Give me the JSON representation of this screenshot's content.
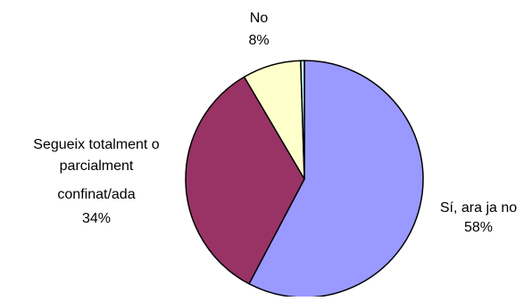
{
  "chart_data": {
    "type": "pie",
    "title": "",
    "categories": [
      "Sí, ara ja no",
      "Segueix totalment o parcialment confinat/ada",
      "No",
      ""
    ],
    "values": [
      58,
      34,
      8,
      0.5
    ],
    "colors": [
      "#9999ff",
      "#993366",
      "#ffffcc",
      "#ccffff"
    ],
    "start_angle_deg": 0,
    "direction": "clockwise",
    "labels": [
      {
        "lines": [
          "Sí, ara ja no",
          "58%"
        ]
      },
      {
        "lines": [
          "Segueix totalment o",
          "parcialment",
          "confinat/ada",
          "34%"
        ]
      },
      {
        "lines": [
          "No",
          "8%"
        ]
      },
      {
        "lines": []
      }
    ]
  }
}
